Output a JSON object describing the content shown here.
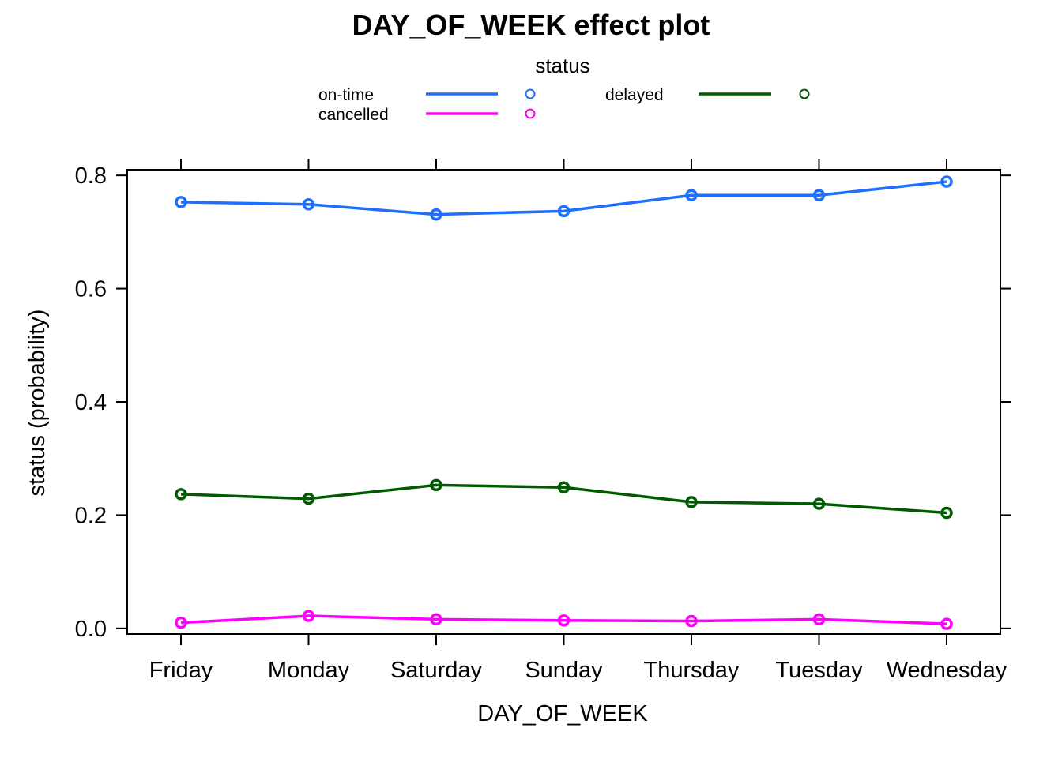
{
  "chart_data": {
    "type": "line",
    "title": "DAY_OF_WEEK effect plot",
    "xlabel": "DAY_OF_WEEK",
    "ylabel": "status (probability)",
    "categories": [
      "Friday",
      "Monday",
      "Saturday",
      "Sunday",
      "Thursday",
      "Tuesday",
      "Wednesday"
    ],
    "ylim": [
      -0.01,
      0.81
    ],
    "yticks": [
      "0.0",
      "0.2",
      "0.4",
      "0.6",
      "0.8"
    ],
    "grid": false,
    "legend": {
      "title": "status",
      "placement": "top",
      "entries": [
        "on-time",
        "cancelled",
        "delayed"
      ]
    },
    "series": [
      {
        "name": "on-time",
        "color": "#1f6fff",
        "values": [
          0.753,
          0.749,
          0.731,
          0.737,
          0.765,
          0.765,
          0.789
        ]
      },
      {
        "name": "cancelled",
        "color": "#ff00ff",
        "values": [
          0.01,
          0.022,
          0.016,
          0.014,
          0.013,
          0.016,
          0.008
        ]
      },
      {
        "name": "delayed",
        "color": "#005a00",
        "values": [
          0.237,
          0.229,
          0.253,
          0.249,
          0.223,
          0.22,
          0.204
        ]
      }
    ]
  }
}
